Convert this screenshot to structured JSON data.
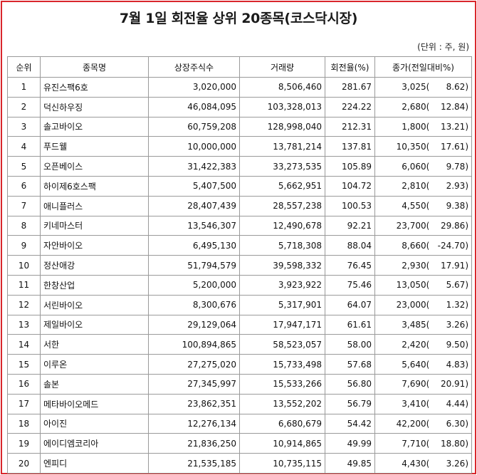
{
  "title": "7월 1일 회전율 상위 20종목(코스닥시장)",
  "unit_note": "(단위 : 주, 원)",
  "columns": [
    "순위",
    "종목명",
    "상장주식수",
    "거래량",
    "회전율(%)",
    "종가(전일대비%)"
  ],
  "rows": [
    {
      "rank": "1",
      "name": "유진스팩6호",
      "listed": "3,020,000",
      "volume": "8,506,460",
      "turnover": "281.67",
      "close": "3,025",
      "change": "8.62"
    },
    {
      "rank": "2",
      "name": "덕신하우징",
      "listed": "46,084,095",
      "volume": "103,328,013",
      "turnover": "224.22",
      "close": "2,680",
      "change": "12.84"
    },
    {
      "rank": "3",
      "name": "솔고바이오",
      "listed": "60,759,208",
      "volume": "128,998,040",
      "turnover": "212.31",
      "close": "1,800",
      "change": "13.21"
    },
    {
      "rank": "4",
      "name": "푸드웰",
      "listed": "10,000,000",
      "volume": "13,781,214",
      "turnover": "137.81",
      "close": "10,350",
      "change": "17.61"
    },
    {
      "rank": "5",
      "name": "오픈베이스",
      "listed": "31,422,383",
      "volume": "33,273,535",
      "turnover": "105.89",
      "close": "6,060",
      "change": "9.78"
    },
    {
      "rank": "6",
      "name": "하이제6호스팩",
      "listed": "5,407,500",
      "volume": "5,662,951",
      "turnover": "104.72",
      "close": "2,810",
      "change": "2.93"
    },
    {
      "rank": "7",
      "name": "애니플러스",
      "listed": "28,407,439",
      "volume": "28,557,238",
      "turnover": "100.53",
      "close": "4,550",
      "change": "9.38"
    },
    {
      "rank": "8",
      "name": "키네마스터",
      "listed": "13,546,307",
      "volume": "12,490,678",
      "turnover": "92.21",
      "close": "23,700",
      "change": "29.86"
    },
    {
      "rank": "9",
      "name": "자안바이오",
      "listed": "6,495,130",
      "volume": "5,718,308",
      "turnover": "88.04",
      "close": "8,660",
      "change": "-24.70"
    },
    {
      "rank": "10",
      "name": "정산애강",
      "listed": "51,794,579",
      "volume": "39,598,332",
      "turnover": "76.45",
      "close": "2,930",
      "change": "17.91"
    },
    {
      "rank": "11",
      "name": "한창산업",
      "listed": "5,200,000",
      "volume": "3,923,922",
      "turnover": "75.46",
      "close": "13,050",
      "change": "5.67"
    },
    {
      "rank": "12",
      "name": "서린바이오",
      "listed": "8,300,676",
      "volume": "5,317,901",
      "turnover": "64.07",
      "close": "23,000",
      "change": "1.32"
    },
    {
      "rank": "13",
      "name": "제일바이오",
      "listed": "29,129,064",
      "volume": "17,947,171",
      "turnover": "61.61",
      "close": "3,485",
      "change": "3.26"
    },
    {
      "rank": "14",
      "name": "서한",
      "listed": "100,894,865",
      "volume": "58,523,057",
      "turnover": "58.00",
      "close": "2,420",
      "change": "9.50"
    },
    {
      "rank": "15",
      "name": "이루온",
      "listed": "27,275,020",
      "volume": "15,733,498",
      "turnover": "57.68",
      "close": "5,640",
      "change": "4.83"
    },
    {
      "rank": "16",
      "name": "솔본",
      "listed": "27,345,997",
      "volume": "15,533,266",
      "turnover": "56.80",
      "close": "7,690",
      "change": "20.91"
    },
    {
      "rank": "17",
      "name": "메타바이오메드",
      "listed": "23,862,351",
      "volume": "13,552,202",
      "turnover": "56.79",
      "close": "3,410",
      "change": "4.44"
    },
    {
      "rank": "18",
      "name": "아이진",
      "listed": "12,276,134",
      "volume": "6,680,679",
      "turnover": "54.42",
      "close": "42,200",
      "change": "6.30"
    },
    {
      "rank": "19",
      "name": "에이디엠코리아",
      "listed": "21,836,250",
      "volume": "10,914,865",
      "turnover": "49.99",
      "close": "7,710",
      "change": "18.80"
    },
    {
      "rank": "20",
      "name": "엔피디",
      "listed": "21,535,185",
      "volume": "10,735,115",
      "turnover": "49.85",
      "close": "4,430",
      "change": "3.26"
    }
  ]
}
